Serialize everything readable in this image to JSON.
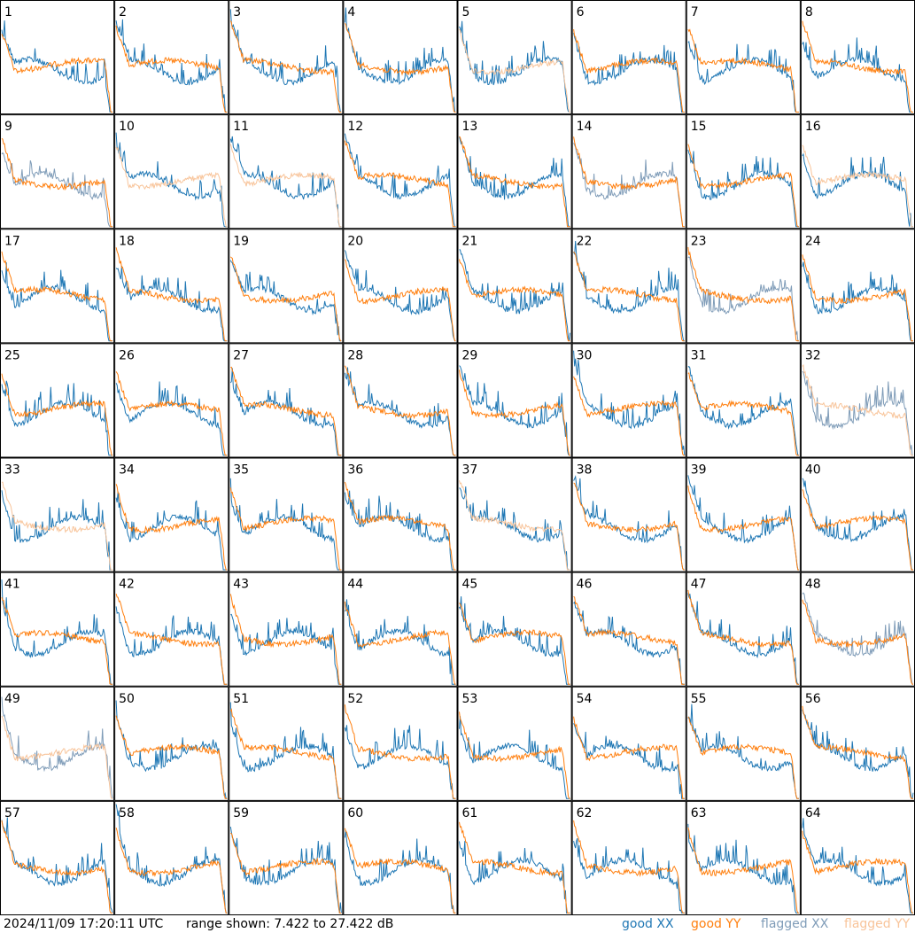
{
  "footer": {
    "timestamp": "2024/11/09 17:20:11 UTC",
    "range_text": "range shown: 7.422 to 27.422 dB"
  },
  "legend": [
    {
      "label": "good XX",
      "color": "#1f77b4"
    },
    {
      "label": "good YY",
      "color": "#ff7f0e"
    },
    {
      "label": "flagged XX",
      "color": "#7f9cb8"
    },
    {
      "label": "flagged YY",
      "color": "#f8c49a"
    }
  ],
  "chart_data": {
    "type": "line",
    "ylim": [
      7.422,
      27.422
    ],
    "panel_labels": [
      "1",
      "2",
      "3",
      "4",
      "5",
      "6",
      "7",
      "8",
      "9",
      "10",
      "11",
      "12",
      "13",
      "14",
      "15",
      "16",
      "17",
      "18",
      "19",
      "20",
      "21",
      "22",
      "23",
      "24",
      "25",
      "26",
      "27",
      "28",
      "29",
      "30",
      "31",
      "32",
      "33",
      "34",
      "35",
      "36",
      "37",
      "38",
      "39",
      "40",
      "41",
      "42",
      "43",
      "44",
      "45",
      "46",
      "47",
      "48",
      "49",
      "50",
      "51",
      "52",
      "53",
      "54",
      "55",
      "56",
      "57",
      "58",
      "59",
      "60",
      "61",
      "62",
      "63",
      "64"
    ],
    "panel_status": [
      {
        "xx": "good",
        "yy": "good"
      },
      {
        "xx": "good",
        "yy": "good"
      },
      {
        "xx": "good",
        "yy": "good"
      },
      {
        "xx": "good",
        "yy": "good"
      },
      {
        "xx": "good",
        "yy": "flagged"
      },
      {
        "xx": "good",
        "yy": "good"
      },
      {
        "xx": "good",
        "yy": "good"
      },
      {
        "xx": "good",
        "yy": "good"
      },
      {
        "xx": "flagged",
        "yy": "good"
      },
      {
        "xx": "good",
        "yy": "flagged"
      },
      {
        "xx": "good",
        "yy": "flagged"
      },
      {
        "xx": "good",
        "yy": "good"
      },
      {
        "xx": "good",
        "yy": "good"
      },
      {
        "xx": "flagged",
        "yy": "good"
      },
      {
        "xx": "good",
        "yy": "good"
      },
      {
        "xx": "good",
        "yy": "flagged"
      },
      {
        "xx": "good",
        "yy": "good"
      },
      {
        "xx": "good",
        "yy": "good"
      },
      {
        "xx": "good",
        "yy": "good"
      },
      {
        "xx": "good",
        "yy": "good"
      },
      {
        "xx": "good",
        "yy": "good"
      },
      {
        "xx": "good",
        "yy": "good"
      },
      {
        "xx": "flagged",
        "yy": "good"
      },
      {
        "xx": "good",
        "yy": "good"
      },
      {
        "xx": "good",
        "yy": "good"
      },
      {
        "xx": "good",
        "yy": "good"
      },
      {
        "xx": "good",
        "yy": "good"
      },
      {
        "xx": "good",
        "yy": "good"
      },
      {
        "xx": "good",
        "yy": "good"
      },
      {
        "xx": "good",
        "yy": "good"
      },
      {
        "xx": "good",
        "yy": "good"
      },
      {
        "xx": "flagged",
        "yy": "flagged"
      },
      {
        "xx": "good",
        "yy": "flagged"
      },
      {
        "xx": "good",
        "yy": "good"
      },
      {
        "xx": "good",
        "yy": "good"
      },
      {
        "xx": "good",
        "yy": "good"
      },
      {
        "xx": "good",
        "yy": "flagged"
      },
      {
        "xx": "good",
        "yy": "good"
      },
      {
        "xx": "good",
        "yy": "good"
      },
      {
        "xx": "good",
        "yy": "good"
      },
      {
        "xx": "good",
        "yy": "good"
      },
      {
        "xx": "good",
        "yy": "good"
      },
      {
        "xx": "good",
        "yy": "good"
      },
      {
        "xx": "good",
        "yy": "good"
      },
      {
        "xx": "good",
        "yy": "good"
      },
      {
        "xx": "good",
        "yy": "good"
      },
      {
        "xx": "good",
        "yy": "good"
      },
      {
        "xx": "flagged",
        "yy": "good"
      },
      {
        "xx": "flagged",
        "yy": "flagged"
      },
      {
        "xx": "good",
        "yy": "good"
      },
      {
        "xx": "good",
        "yy": "good"
      },
      {
        "xx": "good",
        "yy": "good"
      },
      {
        "xx": "good",
        "yy": "good"
      },
      {
        "xx": "good",
        "yy": "good"
      },
      {
        "xx": "good",
        "yy": "good"
      },
      {
        "xx": "good",
        "yy": "good"
      },
      {
        "xx": "good",
        "yy": "good"
      },
      {
        "xx": "good",
        "yy": "good"
      },
      {
        "xx": "good",
        "yy": "good"
      },
      {
        "xx": "good",
        "yy": "good"
      },
      {
        "xx": "good",
        "yy": "good"
      },
      {
        "xx": "good",
        "yy": "good"
      },
      {
        "xx": "good",
        "yy": "good"
      },
      {
        "xx": "good",
        "yy": "good"
      }
    ],
    "grid": false,
    "legend_placement": "bottom-right"
  }
}
